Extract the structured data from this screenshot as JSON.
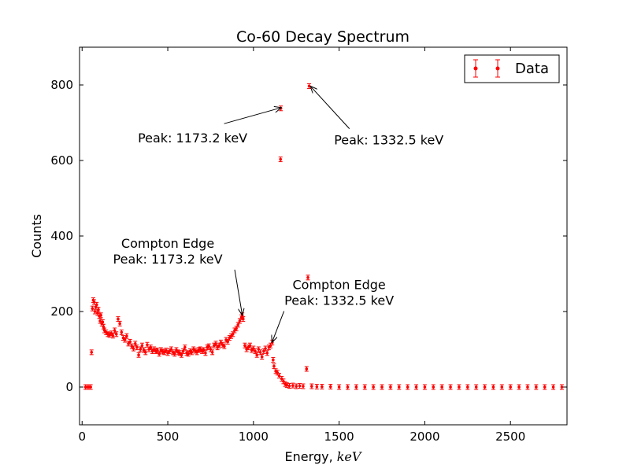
{
  "chart_data": {
    "type": "scatter",
    "title": "Co-60 Decay Spectrum",
    "xlabel": "Energy, ",
    "xlabel_unit": "keV",
    "ylabel": "Counts",
    "xlim": [
      -15,
      2830
    ],
    "ylim": [
      -100,
      900
    ],
    "xticks": [
      "0",
      "500",
      "1000",
      "1500",
      "2000",
      "2500"
    ],
    "yticks": [
      "0",
      "200",
      "400",
      "600",
      "800"
    ],
    "grid": false,
    "legend": {
      "label": "Data",
      "position": "top-right"
    },
    "marker_color": "#ff0000",
    "series": [
      {
        "name": "Data",
        "marker": "point with error bars",
        "points": [
          [
            20,
            0
          ],
          [
            30,
            0
          ],
          [
            40,
            0
          ],
          [
            50,
            0
          ],
          [
            55,
            92
          ],
          [
            60,
            208
          ],
          [
            65,
            230
          ],
          [
            70,
            225
          ],
          [
            75,
            200
          ],
          [
            80,
            212
          ],
          [
            85,
            218
          ],
          [
            90,
            196
          ],
          [
            95,
            205
          ],
          [
            100,
            188
          ],
          [
            105,
            175
          ],
          [
            110,
            190
          ],
          [
            115,
            168
          ],
          [
            120,
            172
          ],
          [
            125,
            160
          ],
          [
            130,
            150
          ],
          [
            140,
            145
          ],
          [
            150,
            140
          ],
          [
            160,
            138
          ],
          [
            170,
            142
          ],
          [
            180,
            136
          ],
          [
            190,
            150
          ],
          [
            200,
            140
          ],
          [
            210,
            180
          ],
          [
            220,
            168
          ],
          [
            230,
            145
          ],
          [
            240,
            130
          ],
          [
            250,
            125
          ],
          [
            260,
            135
          ],
          [
            270,
            115
          ],
          [
            280,
            120
          ],
          [
            290,
            108
          ],
          [
            300,
            102
          ],
          [
            310,
            115
          ],
          [
            320,
            105
          ],
          [
            330,
            85
          ],
          [
            340,
            100
          ],
          [
            350,
            110
          ],
          [
            360,
            98
          ],
          [
            370,
            92
          ],
          [
            380,
            112
          ],
          [
            390,
            100
          ],
          [
            400,
            105
          ],
          [
            410,
            95
          ],
          [
            420,
            100
          ],
          [
            430,
            95
          ],
          [
            440,
            97
          ],
          [
            450,
            88
          ],
          [
            460,
            98
          ],
          [
            470,
            94
          ],
          [
            480,
            92
          ],
          [
            490,
            97
          ],
          [
            500,
            90
          ],
          [
            510,
            95
          ],
          [
            520,
            100
          ],
          [
            530,
            92
          ],
          [
            540,
            88
          ],
          [
            550,
            98
          ],
          [
            560,
            92
          ],
          [
            570,
            90
          ],
          [
            580,
            85
          ],
          [
            590,
            95
          ],
          [
            600,
            105
          ],
          [
            610,
            90
          ],
          [
            620,
            88
          ],
          [
            630,
            95
          ],
          [
            640,
            92
          ],
          [
            650,
            100
          ],
          [
            660,
            96
          ],
          [
            670,
            92
          ],
          [
            680,
            98
          ],
          [
            690,
            100
          ],
          [
            700,
            95
          ],
          [
            710,
            98
          ],
          [
            720,
            90
          ],
          [
            730,
            105
          ],
          [
            740,
            108
          ],
          [
            750,
            100
          ],
          [
            760,
            92
          ],
          [
            770,
            110
          ],
          [
            780,
            115
          ],
          [
            790,
            105
          ],
          [
            800,
            110
          ],
          [
            810,
            118
          ],
          [
            820,
            112
          ],
          [
            830,
            108
          ],
          [
            840,
            125
          ],
          [
            850,
            120
          ],
          [
            860,
            130
          ],
          [
            870,
            135
          ],
          [
            880,
            140
          ],
          [
            890,
            150
          ],
          [
            900,
            155
          ],
          [
            910,
            165
          ],
          [
            920,
            175
          ],
          [
            930,
            185
          ],
          [
            935,
            190
          ],
          [
            940,
            180
          ],
          [
            950,
            110
          ],
          [
            960,
            100
          ],
          [
            970,
            105
          ],
          [
            980,
            110
          ],
          [
            990,
            98
          ],
          [
            1000,
            102
          ],
          [
            1010,
            95
          ],
          [
            1020,
            85
          ],
          [
            1030,
            100
          ],
          [
            1040,
            92
          ],
          [
            1050,
            80
          ],
          [
            1060,
            95
          ],
          [
            1070,
            102
          ],
          [
            1080,
            90
          ],
          [
            1090,
            105
          ],
          [
            1100,
            110
          ],
          [
            1110,
            118
          ],
          [
            1115,
            72
          ],
          [
            1120,
            55
          ],
          [
            1130,
            42
          ],
          [
            1140,
            38
          ],
          [
            1150,
            30
          ],
          [
            1158,
            603
          ],
          [
            1160,
            738
          ],
          [
            1165,
            22
          ],
          [
            1175,
            15
          ],
          [
            1185,
            8
          ],
          [
            1195,
            5
          ],
          [
            1210,
            3
          ],
          [
            1230,
            4
          ],
          [
            1250,
            2
          ],
          [
            1270,
            3
          ],
          [
            1290,
            2
          ],
          [
            1310,
            48
          ],
          [
            1318,
            290
          ],
          [
            1325,
            797
          ],
          [
            1340,
            2
          ],
          [
            1370,
            1
          ],
          [
            1400,
            1
          ],
          [
            1450,
            1
          ],
          [
            1500,
            0
          ],
          [
            1550,
            0
          ],
          [
            1600,
            0
          ],
          [
            1650,
            0
          ],
          [
            1700,
            0
          ],
          [
            1750,
            0
          ],
          [
            1800,
            0
          ],
          [
            1850,
            0
          ],
          [
            1900,
            0
          ],
          [
            1950,
            0
          ],
          [
            2000,
            0
          ],
          [
            2050,
            0
          ],
          [
            2100,
            0
          ],
          [
            2150,
            0
          ],
          [
            2200,
            0
          ],
          [
            2250,
            0
          ],
          [
            2300,
            0
          ],
          [
            2350,
            0
          ],
          [
            2400,
            0
          ],
          [
            2450,
            0
          ],
          [
            2500,
            0
          ],
          [
            2550,
            0
          ],
          [
            2600,
            0
          ],
          [
            2650,
            0
          ],
          [
            2700,
            0
          ],
          [
            2750,
            0
          ],
          [
            2800,
            0
          ]
        ]
      }
    ],
    "annotations": [
      {
        "lines": [
          "Peak: 1173.2 keV"
        ],
        "text_at": [
          645,
          660
        ],
        "point_to": [
          1163,
          740
        ]
      },
      {
        "lines": [
          "Peak: 1332.5 keV"
        ],
        "text_at": [
          1790,
          655
        ],
        "point_to": [
          1332,
          797
        ]
      },
      {
        "lines": [
          "Compton Edge",
          " Peak: 1173.2 keV"
        ],
        "text_at": [
          500,
          340
        ],
        "point_to": [
          935,
          190
        ]
      },
      {
        "lines": [
          "Compton Edge",
          " Peak: 1332.5 keV"
        ],
        "text_at": [
          1500,
          230
        ],
        "point_to": [
          1108,
          118
        ]
      }
    ]
  }
}
